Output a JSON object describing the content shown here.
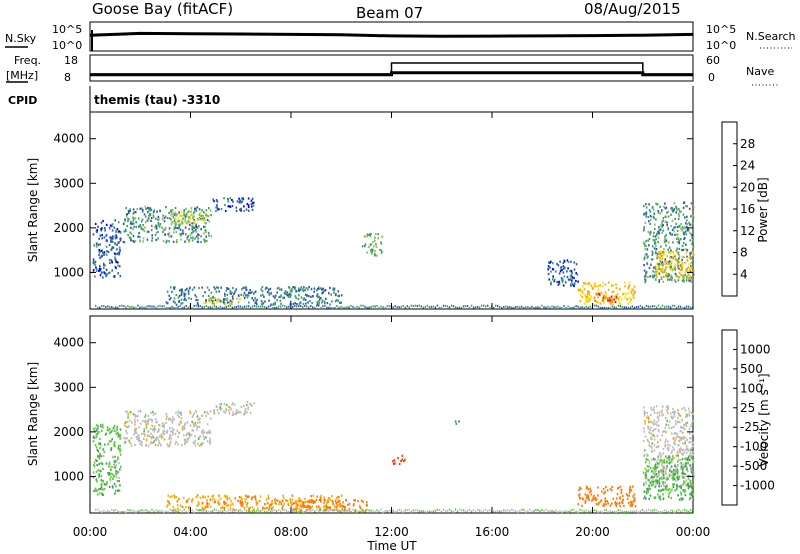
{
  "header": {
    "station": "Goose Bay (fitACF)",
    "beam": "Beam 07",
    "date": "08/Aug/2015"
  },
  "status_panels": {
    "nsky_label": "N.Sky",
    "nsky_ticks": [
      "10^5",
      "10^0"
    ],
    "nsearch_label": "N.Search",
    "nsearch_ticks": [
      "10^5",
      "10^0"
    ],
    "freq_label": "Freq.",
    "freq_unit": "[MHz]",
    "freq_ticks": [
      "18",
      "8"
    ],
    "nave_label": "Nave",
    "nave_ticks": [
      "60",
      "0"
    ],
    "cpid_label": "CPID",
    "cpid_value": "themis (tau) -3310"
  },
  "axes": {
    "ylabel": "Slant Range [km]",
    "yticks": [
      "4000",
      "3000",
      "2000",
      "1000"
    ],
    "xticks": [
      "00:00",
      "04:00",
      "08:00",
      "12:00",
      "16:00",
      "20:00",
      "00:00"
    ],
    "xlabel": "Time UT"
  },
  "colorbars": {
    "power": {
      "label": "Power [dB]",
      "ticks": [
        "28",
        "24",
        "20",
        "16",
        "12",
        "8",
        "4"
      ],
      "colors": [
        "#ff0000",
        "#ff7f00",
        "#ffaa00",
        "#ffdd00",
        "#89c04d",
        "#3a9b6a",
        "#2b55b0",
        "#0000ff"
      ]
    },
    "velocity": {
      "label": "Velocity [m s⁻¹]",
      "ticks": [
        "1000",
        "500",
        "100",
        "25",
        "-25",
        "-100",
        "-500",
        "-1000"
      ],
      "colors": [
        "#2233aa",
        "#2f6fae",
        "#3f9a5c",
        "#55cc33",
        "#bbbbbb",
        "#ffaa00",
        "#ff7700",
        "#ff3300",
        "#ff0000"
      ]
    }
  },
  "chart_data": [
    {
      "type": "line",
      "title": "N.Sky / N.Search",
      "x_range": [
        "00:00",
        "24:00"
      ],
      "x": [
        "00:00",
        "02:00",
        "04:00",
        "06:00",
        "08:00",
        "10:00",
        "12:00",
        "14:00",
        "16:00",
        "18:00",
        "20:00",
        "22:00",
        "24:00"
      ],
      "series": [
        {
          "name": "N.Sky",
          "values": [
            1000,
            2500,
            2000,
            1800,
            1500,
            1200,
            700,
            600,
            650,
            700,
            800,
            1000,
            1500
          ]
        }
      ],
      "y_scale": "log",
      "ylim": [
        1,
        100000
      ]
    },
    {
      "type": "line",
      "title": "Freq. / Nave",
      "x_range": [
        "00:00",
        "24:00"
      ],
      "series": [
        {
          "name": "Freq. [MHz]",
          "x": [
            "00:00",
            "12:00",
            "12:00",
            "22:00",
            "22:00",
            "24:00"
          ],
          "values": [
            10,
            10,
            11,
            11,
            10,
            10
          ]
        },
        {
          "name": "Nave",
          "x": [
            "00:00",
            "12:00",
            "12:00",
            "22:00",
            "22:00",
            "24:00"
          ],
          "values": [
            10,
            10,
            20,
            20,
            10,
            10
          ]
        }
      ],
      "ylim": [
        8,
        18
      ]
    },
    {
      "type": "heatmap",
      "title": "Power [dB]",
      "xlabel": "Time UT",
      "ylabel": "Slant Range [km]",
      "xlim_hours": [
        0,
        24
      ],
      "ylim": [
        180,
        4600
      ],
      "scatter_regions": [
        {
          "t": [
            0.1,
            1.2
          ],
          "range": [
            900,
            2200
          ],
          "power_db": 6
        },
        {
          "t": [
            1.3,
            4.8
          ],
          "range": [
            1700,
            2500
          ],
          "power_db": 10
        },
        {
          "t": [
            3.2,
            4.6
          ],
          "range": [
            2100,
            2400
          ],
          "power_db": 16
        },
        {
          "t": [
            4.8,
            6.5
          ],
          "range": [
            2400,
            2700
          ],
          "power_db": 6
        },
        {
          "t": [
            3.0,
            10.0
          ],
          "range": [
            300,
            700
          ],
          "power_db": 8
        },
        {
          "t": [
            4.5,
            6.0
          ],
          "range": [
            300,
            450
          ],
          "power_db": 18
        },
        {
          "t": [
            10.8,
            11.6
          ],
          "range": [
            1400,
            1900
          ],
          "power_db": 12
        },
        {
          "t": [
            18.2,
            19.4
          ],
          "range": [
            700,
            1300
          ],
          "power_db": 6
        },
        {
          "t": [
            19.4,
            21.7
          ],
          "range": [
            300,
            800
          ],
          "power_db": 20
        },
        {
          "t": [
            20.0,
            21.0
          ],
          "range": [
            350,
            550
          ],
          "power_db": 28
        },
        {
          "t": [
            22.0,
            24.0
          ],
          "range": [
            800,
            2600
          ],
          "power_db": 10
        },
        {
          "t": [
            22.5,
            24.0
          ],
          "range": [
            900,
            1500
          ],
          "power_db": 20
        }
      ]
    },
    {
      "type": "heatmap",
      "title": "Velocity [m s⁻¹]",
      "xlabel": "Time UT",
      "ylabel": "Slant Range [km]",
      "xlim_hours": [
        0,
        24
      ],
      "ylim": [
        180,
        4600
      ],
      "scatter_regions": [
        {
          "t": [
            0.1,
            1.2
          ],
          "range": [
            600,
            2200
          ],
          "velocity": 50
        },
        {
          "t": [
            1.3,
            4.8
          ],
          "range": [
            1700,
            2500
          ],
          "velocity": 0
        },
        {
          "t": [
            4.8,
            6.5
          ],
          "range": [
            2400,
            2700
          ],
          "velocity": 0
        },
        {
          "t": [
            3.0,
            10.0
          ],
          "range": [
            250,
            600
          ],
          "velocity": -60
        },
        {
          "t": [
            8.0,
            11.0
          ],
          "range": [
            250,
            500
          ],
          "velocity": -150
        },
        {
          "t": [
            12.0,
            12.5
          ],
          "range": [
            1300,
            1500
          ],
          "velocity": -600
        },
        {
          "t": [
            14.5,
            14.8
          ],
          "range": [
            2200,
            2300
          ],
          "velocity": 300
        },
        {
          "t": [
            19.4,
            21.7
          ],
          "range": [
            350,
            800
          ],
          "velocity": -120
        },
        {
          "t": [
            22.0,
            24.0
          ],
          "range": [
            800,
            2600
          ],
          "velocity": 0
        },
        {
          "t": [
            22.0,
            24.0
          ],
          "range": [
            500,
            1500
          ],
          "velocity": 60
        }
      ]
    }
  ]
}
